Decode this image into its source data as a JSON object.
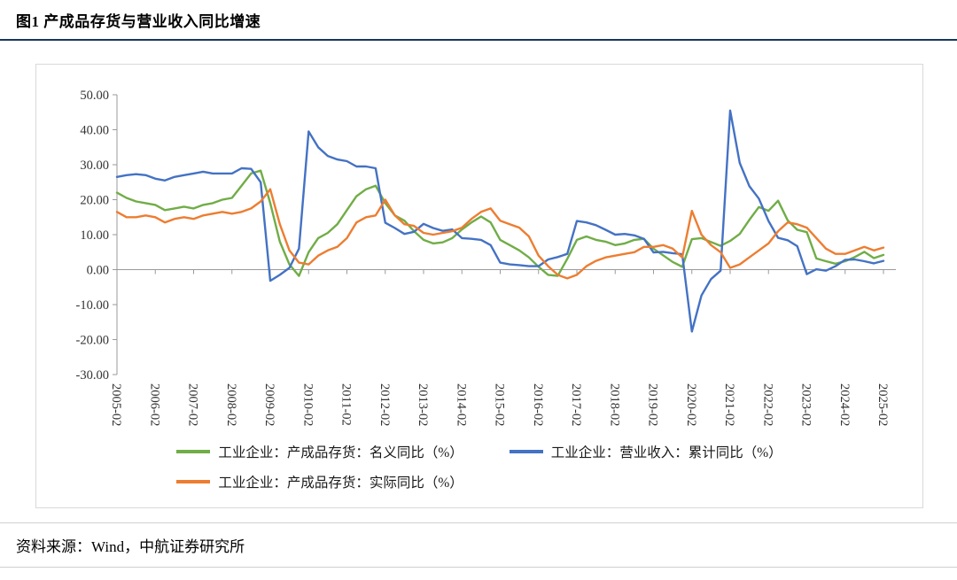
{
  "page": {
    "title": "图1 产成品存货与营业收入同比增速",
    "source": "资料来源：Wind，中航证券研究所"
  },
  "chart_data": {
    "type": "line",
    "title": "图1 产成品存货与营业收入同比增速",
    "ylim": [
      -30,
      50
    ],
    "y_tick_step": 10,
    "grid": false,
    "legend_position": "bottom",
    "y_tick_labels": [
      "50.00",
      "40.00",
      "30.00",
      "20.00",
      "10.00",
      "0.00",
      "-10.00",
      "-20.00",
      "-30.00"
    ],
    "x_tick_labels": [
      "2005-02",
      "2006-02",
      "2007-02",
      "2008-02",
      "2009-02",
      "2010-02",
      "2011-02",
      "2012-02",
      "2013-02",
      "2014-02",
      "2015-02",
      "2016-02",
      "2017-02",
      "2018-02",
      "2019-02",
      "2020-02",
      "2021-02",
      "2022-02",
      "2023-02",
      "2024-02",
      "2025-02"
    ],
    "x": [
      "2005-02",
      "2005-05",
      "2005-08",
      "2005-11",
      "2006-02",
      "2006-05",
      "2006-08",
      "2006-11",
      "2007-02",
      "2007-05",
      "2007-08",
      "2007-11",
      "2008-02",
      "2008-05",
      "2008-08",
      "2008-11",
      "2009-02",
      "2009-05",
      "2009-08",
      "2009-11",
      "2010-02",
      "2010-05",
      "2010-08",
      "2010-11",
      "2011-02",
      "2011-05",
      "2011-08",
      "2011-11",
      "2012-02",
      "2012-05",
      "2012-08",
      "2012-11",
      "2013-02",
      "2013-05",
      "2013-08",
      "2013-11",
      "2014-02",
      "2014-05",
      "2014-08",
      "2014-11",
      "2015-02",
      "2015-05",
      "2015-08",
      "2015-11",
      "2016-02",
      "2016-05",
      "2016-08",
      "2016-11",
      "2017-02",
      "2017-05",
      "2017-08",
      "2017-11",
      "2018-02",
      "2018-05",
      "2018-08",
      "2018-11",
      "2019-02",
      "2019-05",
      "2019-08",
      "2019-11",
      "2020-02",
      "2020-05",
      "2020-08",
      "2020-11",
      "2021-02",
      "2021-05",
      "2021-08",
      "2021-11",
      "2022-02",
      "2022-05",
      "2022-08",
      "2022-11",
      "2023-02",
      "2023-05",
      "2023-08",
      "2023-11",
      "2024-02",
      "2024-05",
      "2024-08",
      "2024-11",
      "2025-02"
    ],
    "series": [
      {
        "name": "工业企业：产成品存货：名义同比（%）",
        "color": "#70AD47",
        "values": [
          22.0,
          20.5,
          19.5,
          19.0,
          18.5,
          17.0,
          17.5,
          18.0,
          17.5,
          18.5,
          19.0,
          20.0,
          20.5,
          24.0,
          27.5,
          28.3,
          19.0,
          8.0,
          1.5,
          -1.8,
          5.0,
          9.0,
          10.5,
          13.0,
          17.0,
          21.0,
          23.0,
          24.0,
          19.0,
          15.5,
          14.0,
          11.0,
          8.5,
          7.5,
          7.8,
          9.0,
          11.5,
          13.5,
          15.2,
          13.5,
          8.5,
          7.0,
          5.5,
          3.5,
          0.8,
          -1.5,
          -1.8,
          3.1,
          8.5,
          9.5,
          8.5,
          8.0,
          7.0,
          7.5,
          8.5,
          8.8,
          6.0,
          4.1,
          2.2,
          0.8,
          8.7,
          9.0,
          7.9,
          6.8,
          8.2,
          10.2,
          14.2,
          17.9,
          16.8,
          19.7,
          14.1,
          11.4,
          10.7,
          3.2,
          2.4,
          1.7,
          2.4,
          3.6,
          5.1,
          3.3,
          4.2
        ]
      },
      {
        "name": "工业企业：营业收入：累计同比（%）",
        "color": "#4472C4",
        "values": [
          26.5,
          27.0,
          27.3,
          27.0,
          26.0,
          25.5,
          26.5,
          27.0,
          27.5,
          28.0,
          27.5,
          27.5,
          27.5,
          29.0,
          28.8,
          25.0,
          -3.2,
          -1.5,
          0.5,
          6.0,
          39.5,
          35.0,
          32.5,
          31.5,
          31.0,
          29.5,
          29.5,
          29.0,
          13.4,
          11.9,
          10.2,
          10.8,
          13.1,
          11.9,
          11.1,
          11.5,
          9.0,
          8.8,
          8.5,
          7.0,
          2.0,
          1.5,
          1.3,
          1.0,
          1.0,
          2.9,
          3.6,
          4.5,
          13.9,
          13.5,
          12.7,
          11.4,
          10.0,
          10.2,
          9.8,
          8.8,
          4.9,
          5.1,
          4.7,
          4.4,
          -17.7,
          -7.4,
          -2.7,
          -0.3,
          45.5,
          30.5,
          23.9,
          20.3,
          13.9,
          9.1,
          8.4,
          6.7,
          -1.3,
          0.1,
          -0.3,
          1.0,
          2.8,
          2.9,
          2.4,
          1.8,
          2.5
        ]
      },
      {
        "name": "工业企业：产成品存货：实际同比（%）",
        "color": "#ED7D31",
        "values": [
          16.5,
          15.0,
          15.0,
          15.5,
          15.0,
          13.5,
          14.5,
          15.0,
          14.5,
          15.5,
          16.0,
          16.5,
          16.0,
          16.5,
          17.5,
          19.5,
          23.0,
          13.0,
          5.5,
          2.0,
          1.5,
          4.0,
          5.5,
          6.5,
          9.0,
          13.5,
          15.0,
          15.5,
          20.0,
          15.5,
          13.0,
          12.5,
          10.5,
          10.0,
          10.5,
          11.0,
          12.0,
          14.5,
          16.5,
          17.5,
          14.0,
          13.0,
          12.0,
          9.5,
          4.0,
          1.0,
          -1.5,
          -2.5,
          -1.5,
          1.0,
          2.5,
          3.5,
          4.0,
          4.5,
          5.0,
          6.5,
          6.5,
          7.0,
          6.0,
          3.5,
          16.8,
          10.0,
          7.0,
          5.0,
          0.5,
          1.5,
          3.5,
          5.5,
          7.5,
          11.0,
          13.5,
          13.0,
          12.0,
          9.0,
          6.0,
          4.5,
          4.5,
          5.5,
          6.5,
          5.5,
          6.3
        ]
      }
    ]
  }
}
